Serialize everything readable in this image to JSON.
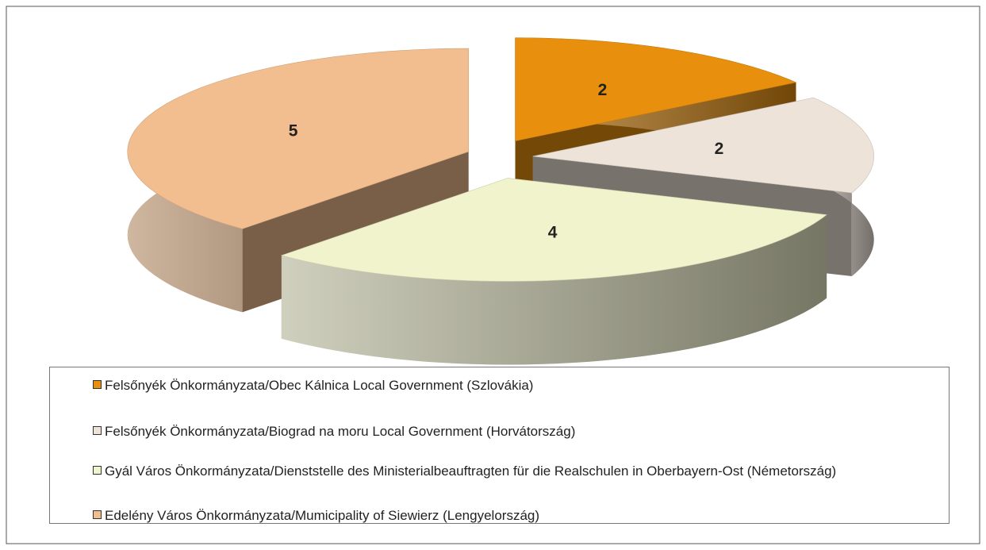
{
  "chart_data": {
    "type": "pie",
    "categories": [
      "Felsőnyék Önkormányzata/Obec Kálnica Local Government (Szlovákia)",
      "Felsőnyék Önkormányzata/Biograd na moru Local Government (Horvátország)",
      "Gyál Város Önkormányzata/Dienststelle des Ministerialbeauftragten für die Realschulen in Oberbayern-Ost (Németország)",
      "Edelény Város Önkormányzata/Mumicipality of Siewierz (Lengyelország)"
    ],
    "values": [
      2,
      2,
      4,
      5
    ],
    "colors": [
      "#E8900E",
      "#EDE3D8",
      "#F1F3CC",
      "#F2BE90"
    ]
  }
}
